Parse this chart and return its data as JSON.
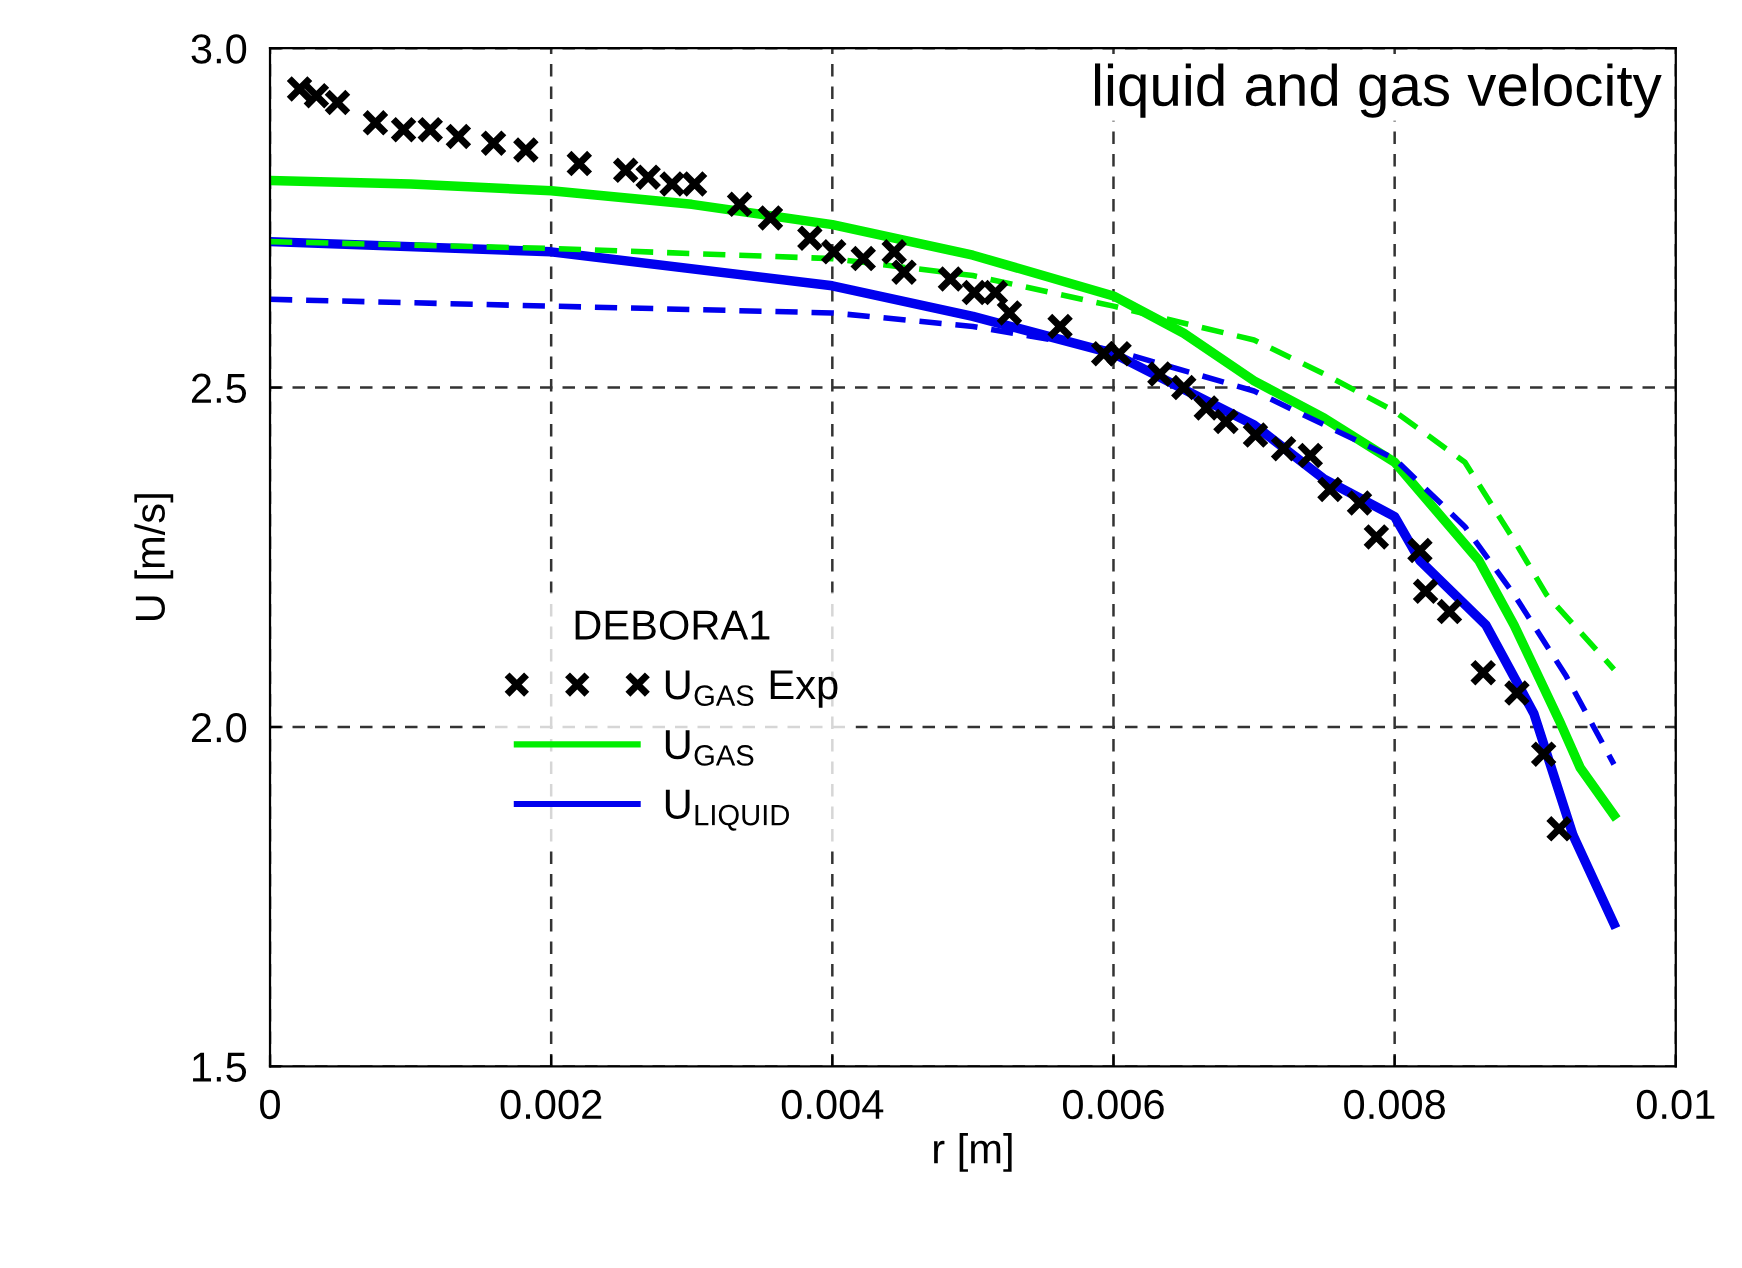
{
  "chart_data": {
    "type": "line",
    "title": "liquid and gas velocity",
    "xlabel": "r [m]",
    "ylabel": "U [m/s]",
    "legend_title": "DEBORA1",
    "xlim": [
      0,
      0.01
    ],
    "ylim": [
      1.5,
      3.0
    ],
    "xticks": [
      0,
      0.002,
      0.004,
      0.006,
      0.008,
      0.01
    ],
    "yticks": [
      {
        "value": 1.5,
        "label": "1.5"
      },
      {
        "value": 2.0,
        "label": "2.0"
      },
      {
        "value": 2.5,
        "label": "2.5"
      },
      {
        "value": 3.0,
        "label": "3.0"
      }
    ],
    "grid": true,
    "legend": "left",
    "series": [
      {
        "name": "U$_{GAS}$ Exp",
        "type": "scatter",
        "marker": "cross",
        "color": "#000000",
        "x": [
          0.00021,
          0.00033,
          0.00048,
          0.00075,
          0.00095,
          0.00114,
          0.00134,
          0.00159,
          0.00182,
          0.0022,
          0.00253,
          0.00269,
          0.00286,
          0.00302,
          0.00334,
          0.00356,
          0.00384,
          0.00401,
          0.00422,
          0.00444,
          0.00451,
          0.00484,
          0.00501,
          0.00516,
          0.00526,
          0.00562,
          0.00593,
          0.00604,
          0.00633,
          0.0065,
          0.00666,
          0.0068,
          0.00701,
          0.00721,
          0.0074,
          0.00754,
          0.00775,
          0.00787,
          0.00818,
          0.00822,
          0.00839,
          0.00863,
          0.00887,
          0.00906,
          0.00917
        ],
        "values": [
          2.94,
          2.93,
          2.92,
          2.89,
          2.88,
          2.88,
          2.87,
          2.86,
          2.85,
          2.83,
          2.82,
          2.81,
          2.8,
          2.8,
          2.77,
          2.75,
          2.72,
          2.7,
          2.69,
          2.7,
          2.67,
          2.66,
          2.64,
          2.64,
          2.61,
          2.59,
          2.55,
          2.55,
          2.52,
          2.5,
          2.47,
          2.45,
          2.43,
          2.41,
          2.4,
          2.35,
          2.33,
          2.28,
          2.26,
          2.2,
          2.17,
          2.08,
          2.05,
          1.96,
          1.85
        ]
      },
      {
        "name": "U$_{GAS}$",
        "color": "#00ee00",
        "line_style": "solid",
        "x": [
          0,
          0.001,
          0.002,
          0.003,
          0.004,
          0.005,
          0.006,
          0.0065,
          0.007,
          0.0075,
          0.008,
          0.0086,
          0.00885,
          0.00917,
          0.00932,
          0.00956
        ],
        "values": [
          2.805,
          2.8,
          2.79,
          2.77,
          2.74,
          2.695,
          2.635,
          2.58,
          2.51,
          2.455,
          2.39,
          2.245,
          2.15,
          2.01,
          1.94,
          1.87
        ]
      },
      {
        "name": "U$_{LIQUID}$",
        "color": "#0000ee",
        "line_style": "solid",
        "x": [
          0,
          0.002,
          0.004,
          0.005,
          0.006,
          0.007,
          0.0075,
          0.008,
          0.00818,
          0.00865,
          0.00899,
          0.00927,
          0.00956
        ],
        "values": [
          2.715,
          2.7,
          2.65,
          2.605,
          2.55,
          2.445,
          2.365,
          2.31,
          2.245,
          2.15,
          2.02,
          1.84,
          1.71
        ]
      },
      {
        "color": "#00ee00",
        "line_style": "dashed",
        "x": [
          0,
          0.002,
          0.004,
          0.005,
          0.006,
          0.007,
          0.0075,
          0.008,
          0.0085,
          0.00885,
          0.00908,
          0.00956
        ],
        "values": [
          2.715,
          2.705,
          2.69,
          2.665,
          2.62,
          2.57,
          2.52,
          2.465,
          2.39,
          2.275,
          2.195,
          2.085
        ]
      },
      {
        "color": "#0000ee",
        "line_style": "dashed",
        "x": [
          0,
          0.002,
          0.004,
          0.005,
          0.006,
          0.007,
          0.0075,
          0.008,
          0.0085,
          0.00885,
          0.00922,
          0.00956
        ],
        "values": [
          2.63,
          2.62,
          2.61,
          2.59,
          2.555,
          2.495,
          2.445,
          2.395,
          2.295,
          2.195,
          2.075,
          1.945
        ]
      }
    ]
  }
}
